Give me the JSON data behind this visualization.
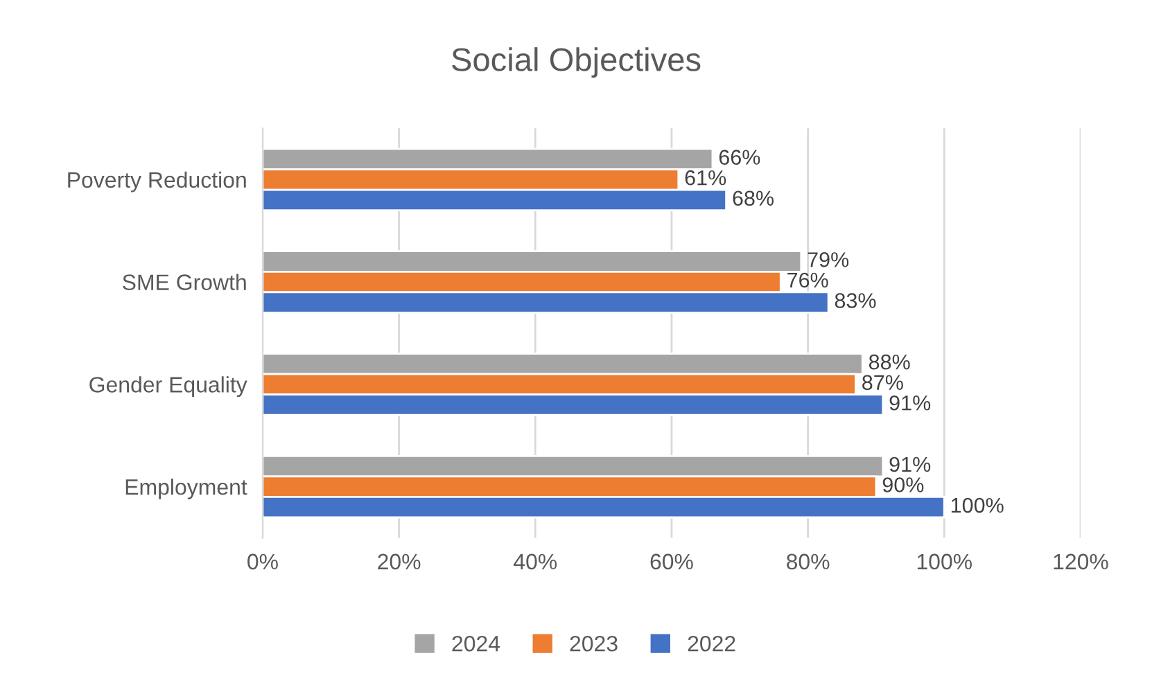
{
  "chart_data": {
    "type": "bar",
    "orientation": "horizontal",
    "title": "Social Objectives",
    "categories": [
      "Poverty Reduction",
      "SME Growth",
      "Gender Equality",
      "Employment"
    ],
    "series": [
      {
        "name": "2024",
        "color": "#a5a5a5",
        "values": [
          66,
          79,
          88,
          91
        ],
        "value_labels": [
          "66%",
          "79%",
          "88%",
          "91%"
        ]
      },
      {
        "name": "2023",
        "color": "#ed7d31",
        "values": [
          61,
          76,
          87,
          90
        ],
        "value_labels": [
          "61%",
          "76%",
          "87%",
          "90%"
        ]
      },
      {
        "name": "2022",
        "color": "#4472c4",
        "values": [
          68,
          83,
          91,
          100
        ],
        "value_labels": [
          "68%",
          "83%",
          "91%",
          "100%"
        ]
      }
    ],
    "xlim": [
      0,
      120
    ],
    "xticks": [
      {
        "value": 0,
        "label": "0%"
      },
      {
        "value": 20,
        "label": "20%"
      },
      {
        "value": 40,
        "label": "40%"
      },
      {
        "value": 60,
        "label": "60%"
      },
      {
        "value": 80,
        "label": "80%"
      },
      {
        "value": 100,
        "label": "100%"
      },
      {
        "value": 120,
        "label": "120%"
      }
    ],
    "grid": "x",
    "legend": "bottom"
  }
}
